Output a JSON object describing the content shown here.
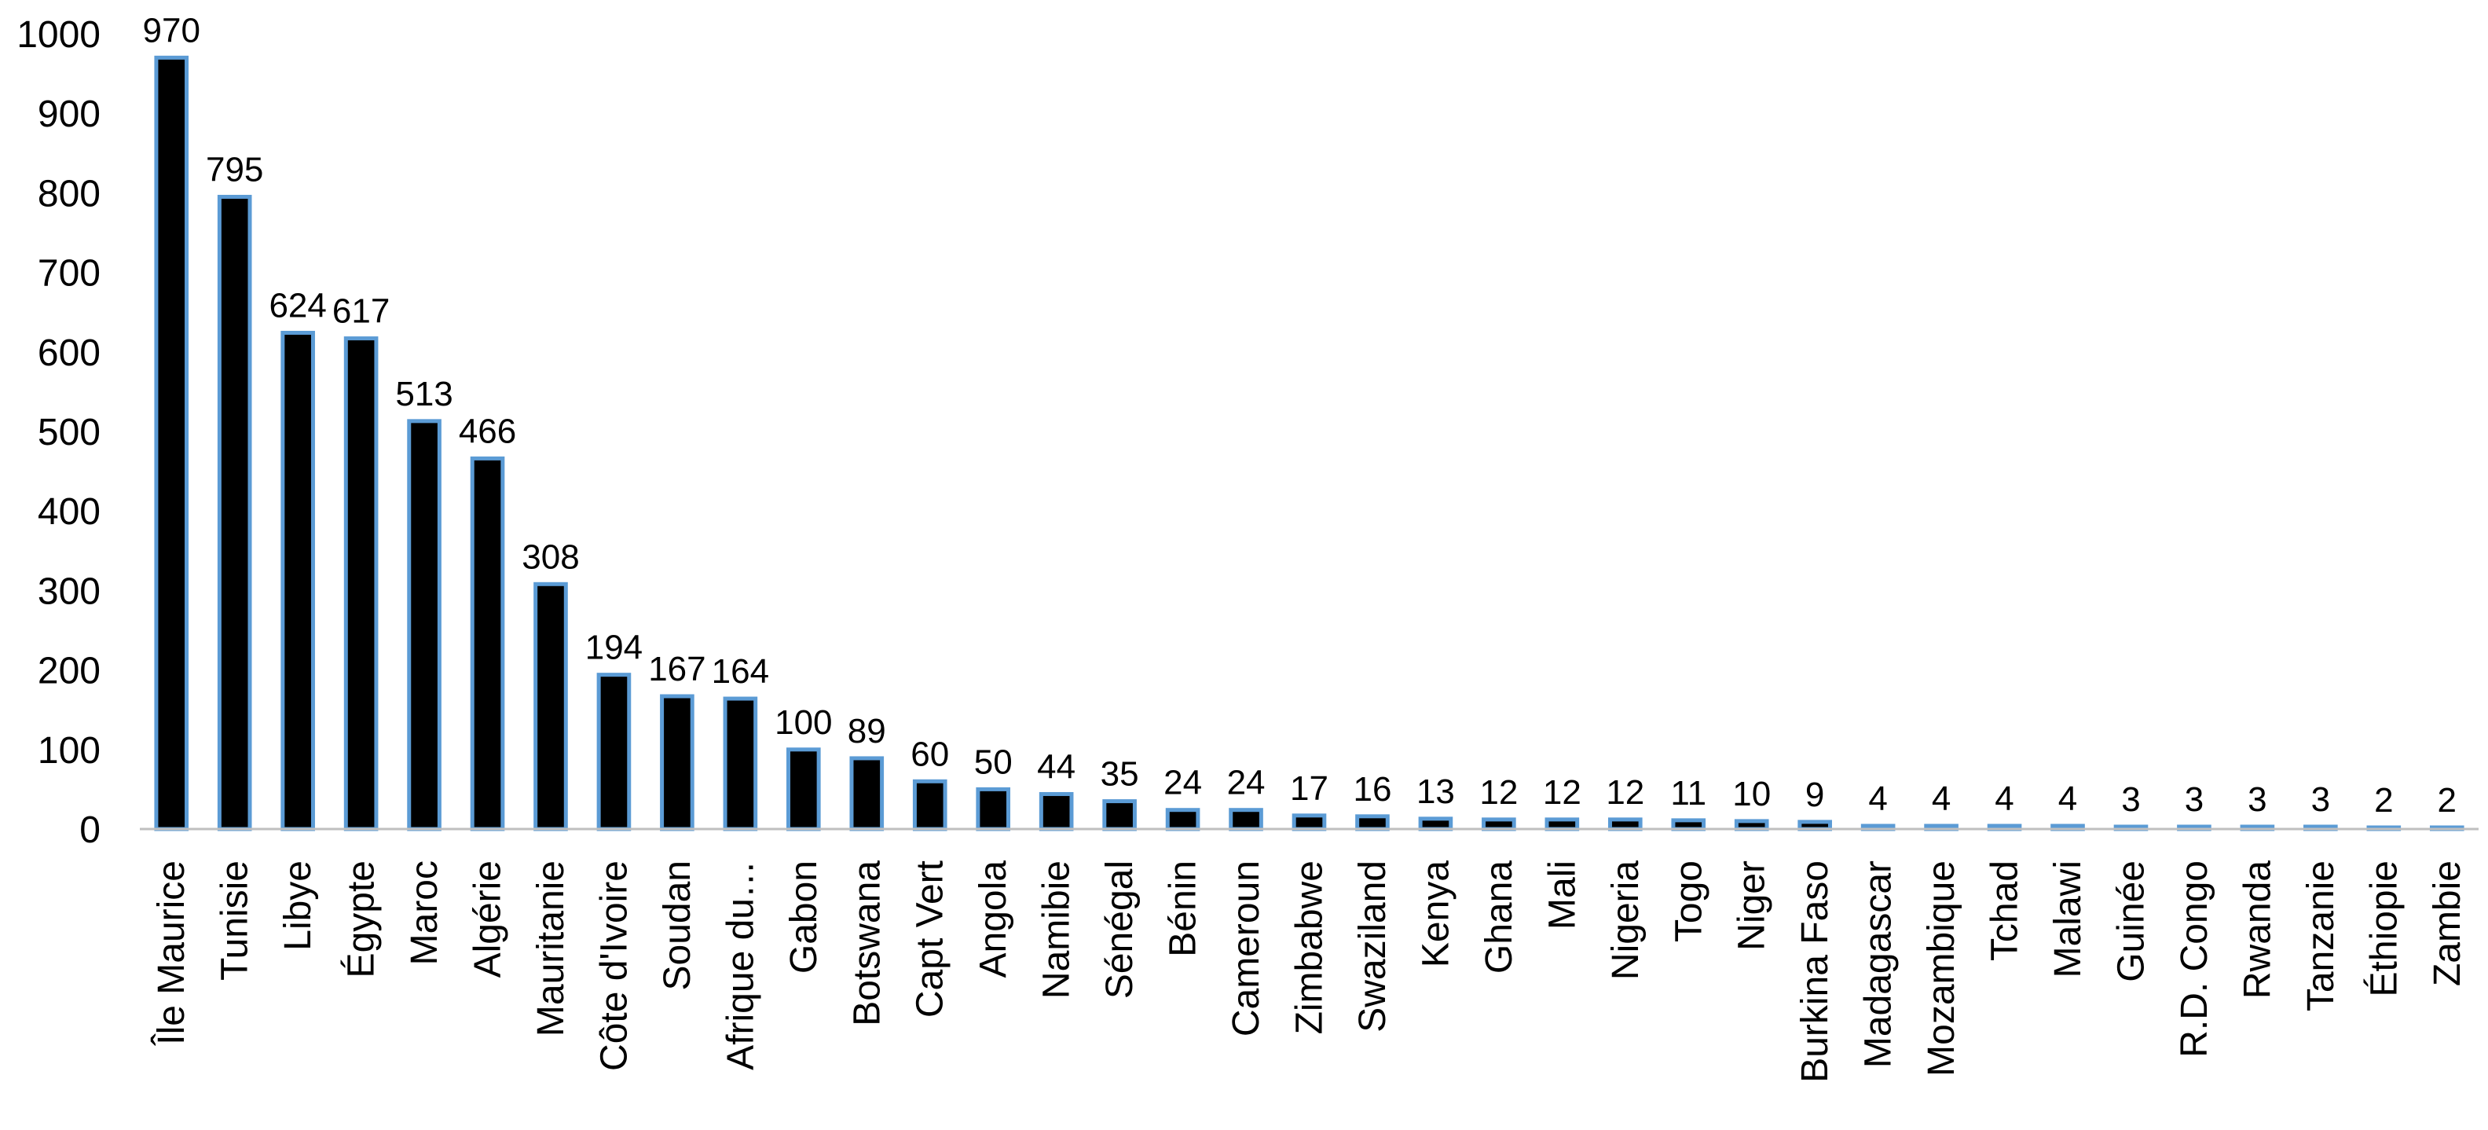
{
  "chart_data": {
    "type": "bar",
    "title": "",
    "xlabel": "",
    "ylabel": "",
    "ylim": [
      0,
      1000
    ],
    "y_ticks": [
      0,
      100,
      200,
      300,
      400,
      500,
      600,
      700,
      800,
      900,
      1000
    ],
    "grid": false,
    "legend": "none",
    "categories": [
      "Île Maurice",
      "Tunisie",
      "Libye",
      "Égypte",
      "Maroc",
      "Algérie",
      "Mauritanie",
      "Côte d'Ivoire",
      "Soudan",
      "Afrique du…",
      "Gabon",
      "Botswana",
      "Capt Vert",
      "Angola",
      "Namibie",
      "Sénégal",
      "Bénin",
      "Cameroun",
      "Zimbabwe",
      "Swaziland",
      "Kenya",
      "Ghana",
      "Mali",
      "Nigeria",
      "Togo",
      "Niger",
      "Burkina Faso",
      "Madagascar",
      "Mozambique",
      "Tchad",
      "Malawi",
      "Guinée",
      "R.D. Congo",
      "Rwanda",
      "Tanzanie",
      "Éthiopie",
      "Zambie"
    ],
    "values": [
      970,
      795,
      624,
      617,
      513,
      466,
      308,
      194,
      167,
      164,
      100,
      89,
      60,
      50,
      44,
      35,
      24,
      24,
      17,
      16,
      13,
      12,
      12,
      12,
      11,
      10,
      9,
      4,
      4,
      4,
      4,
      3,
      3,
      3,
      3,
      2,
      2
    ],
    "colors": {
      "bar_fill": "#000000",
      "bar_outline": "#5b9bd5",
      "axis": "#bfbfbf"
    }
  }
}
